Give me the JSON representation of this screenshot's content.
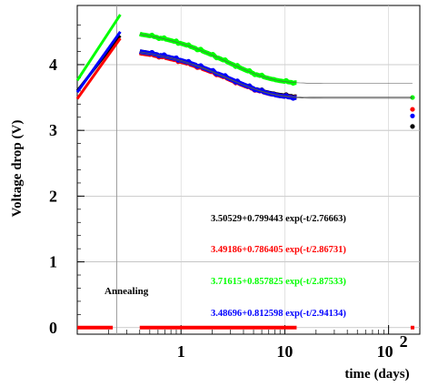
{
  "chart_data": {
    "type": "scatter",
    "xlabel": "time (days)",
    "ylabel": "Voltage drop (V)",
    "x_scale": "log",
    "xlim": [
      0.1,
      200
    ],
    "ylim": [
      -0.1,
      4.9
    ],
    "x_ticks": [
      {
        "value": 1,
        "label": "1"
      },
      {
        "value": 10,
        "label": "10"
      },
      {
        "value": 100,
        "label_base": "10",
        "label_exp": "2"
      }
    ],
    "y_ticks": [
      {
        "value": 0,
        "label": "0"
      },
      {
        "value": 1,
        "label": "1"
      },
      {
        "value": 2,
        "label": "2"
      },
      {
        "value": 3,
        "label": "3"
      },
      {
        "value": 4,
        "label": "4"
      }
    ],
    "grid": true,
    "annotation": "Annealing",
    "fits": [
      {
        "text": "3.50529+0.799443 exp(-t/2.76663)",
        "color": "#000000"
      },
      {
        "text": "3.49186+0.786405 exp(-t/2.86731)",
        "color": "#ff0000"
      },
      {
        "text": "3.71615+0.857825 exp(-t/2.87533)",
        "color": "#00ff00"
      },
      {
        "text": "3.48696+0.812598 exp(-t/2.94134)",
        "color": "#0000ff"
      }
    ],
    "series": [
      {
        "color": "#000000",
        "ramp": [
          [
            0.1,
            3.6
          ],
          [
            0.26,
            4.44
          ]
        ],
        "start": 0.4,
        "a": 3.50529,
        "b": 0.799443,
        "tau": 2.76663,
        "end": 13,
        "late": {
          "x": 170,
          "y": 3.06
        }
      },
      {
        "color": "#ff0000",
        "ramp": [
          [
            0.1,
            3.48
          ],
          [
            0.26,
            4.4
          ]
        ],
        "start": 0.4,
        "a": 3.49186,
        "b": 0.786405,
        "tau": 2.86731,
        "end": 13,
        "late": {
          "x": 170,
          "y": 3.32
        }
      },
      {
        "color": "#00ff00",
        "ramp": [
          [
            0.1,
            3.76
          ],
          [
            0.26,
            4.76
          ]
        ],
        "start": 0.4,
        "a": 3.71615,
        "b": 0.857825,
        "tau": 2.87533,
        "end": 13,
        "late": {
          "x": 170,
          "y": 3.5
        }
      },
      {
        "color": "#0000ff",
        "ramp": [
          [
            0.1,
            3.58
          ],
          [
            0.26,
            4.5
          ]
        ],
        "start": 0.4,
        "a": 3.48696,
        "b": 0.812598,
        "tau": 2.94134,
        "end": 13,
        "late": {
          "x": 170,
          "y": 3.22
        }
      }
    ],
    "annealing_marker": {
      "color": "#ff0000",
      "y": 0,
      "segments": [
        [
          0.1,
          0.22
        ],
        [
          0.4,
          13
        ]
      ],
      "point": 170
    }
  }
}
